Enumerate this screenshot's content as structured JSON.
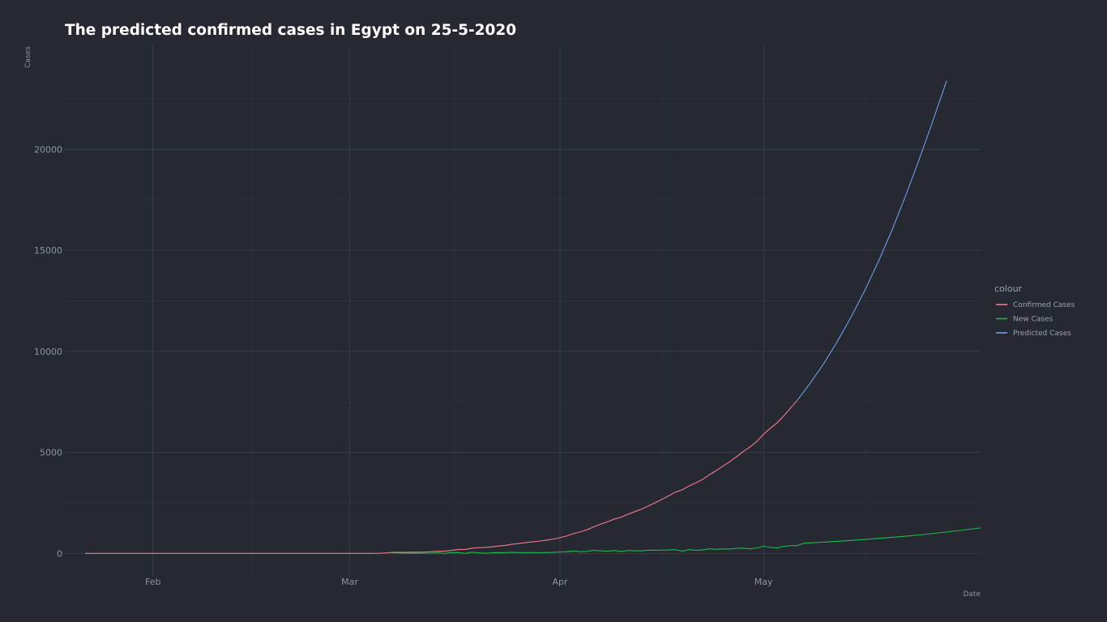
{
  "chart_data": {
    "type": "line",
    "title": "The predicted confirmed cases in Egypt on 25-5-2020",
    "xlabel": "Date",
    "ylabel": "Cases",
    "x_type": "date",
    "xlim": [
      "2020-01-19",
      "2020-06-02"
    ],
    "ylim": [
      -1150,
      25150
    ],
    "y_ticks": [
      0,
      5000,
      10000,
      15000,
      20000
    ],
    "x_ticks": [
      {
        "date": "2020-02-01",
        "label": "Feb"
      },
      {
        "date": "2020-03-01",
        "label": "Mar"
      },
      {
        "date": "2020-04-01",
        "label": "Apr"
      },
      {
        "date": "2020-05-01",
        "label": "May"
      }
    ],
    "grid": true,
    "legend_title": "colour",
    "legend_position": "right",
    "series": [
      {
        "name": "Confirmed Cases",
        "color": "#f27b8b",
        "points": [
          [
            "2020-01-22",
            0
          ],
          [
            "2020-02-14",
            1
          ],
          [
            "2020-03-01",
            2
          ],
          [
            "2020-03-04",
            2
          ],
          [
            "2020-03-05",
            3
          ],
          [
            "2020-03-06",
            15
          ],
          [
            "2020-03-07",
            48
          ],
          [
            "2020-03-08",
            55
          ],
          [
            "2020-03-09",
            55
          ],
          [
            "2020-03-10",
            59
          ],
          [
            "2020-03-11",
            60
          ],
          [
            "2020-03-12",
            67
          ],
          [
            "2020-03-13",
            80
          ],
          [
            "2020-03-14",
            109
          ],
          [
            "2020-03-15",
            110
          ],
          [
            "2020-03-16",
            150
          ],
          [
            "2020-03-17",
            196
          ],
          [
            "2020-03-18",
            196
          ],
          [
            "2020-03-19",
            256
          ],
          [
            "2020-03-20",
            285
          ],
          [
            "2020-03-21",
            294
          ],
          [
            "2020-03-22",
            327
          ],
          [
            "2020-03-23",
            366
          ],
          [
            "2020-03-24",
            402
          ],
          [
            "2020-03-25",
            456
          ],
          [
            "2020-03-26",
            495
          ],
          [
            "2020-03-27",
            536
          ],
          [
            "2020-03-28",
            576
          ],
          [
            "2020-03-29",
            609
          ],
          [
            "2020-03-30",
            656
          ],
          [
            "2020-03-31",
            710
          ],
          [
            "2020-04-01",
            779
          ],
          [
            "2020-04-02",
            865
          ],
          [
            "2020-04-03",
            985
          ],
          [
            "2020-04-04",
            1070
          ],
          [
            "2020-04-05",
            1173
          ],
          [
            "2020-04-06",
            1322
          ],
          [
            "2020-04-07",
            1450
          ],
          [
            "2020-04-08",
            1560
          ],
          [
            "2020-04-09",
            1699
          ],
          [
            "2020-04-10",
            1794
          ],
          [
            "2020-04-11",
            1939
          ],
          [
            "2020-04-12",
            2065
          ],
          [
            "2020-04-13",
            2190
          ],
          [
            "2020-04-14",
            2350
          ],
          [
            "2020-04-15",
            2505
          ],
          [
            "2020-04-16",
            2673
          ],
          [
            "2020-04-17",
            2844
          ],
          [
            "2020-04-18",
            3032
          ],
          [
            "2020-04-19",
            3144
          ],
          [
            "2020-04-20",
            3333
          ],
          [
            "2020-04-21",
            3490
          ],
          [
            "2020-04-22",
            3659
          ],
          [
            "2020-04-23",
            3891
          ],
          [
            "2020-04-24",
            4092
          ],
          [
            "2020-04-25",
            4319
          ],
          [
            "2020-04-26",
            4534
          ],
          [
            "2020-04-27",
            4782
          ],
          [
            "2020-04-28",
            5042
          ],
          [
            "2020-04-29",
            5268
          ],
          [
            "2020-04-30",
            5537
          ],
          [
            "2020-05-01",
            5895
          ],
          [
            "2020-05-02",
            6193
          ],
          [
            "2020-05-03",
            6465
          ],
          [
            "2020-05-04",
            6813
          ],
          [
            "2020-05-05",
            7201
          ],
          [
            "2020-05-06",
            7588
          ]
        ]
      },
      {
        "name": "New Cases",
        "color": "#1dbb4d",
        "points": [
          [
            "2020-03-07",
            33
          ],
          [
            "2020-03-10",
            4
          ],
          [
            "2020-03-13",
            13
          ],
          [
            "2020-03-14",
            29
          ],
          [
            "2020-03-15",
            1
          ],
          [
            "2020-03-16",
            40
          ],
          [
            "2020-03-17",
            46
          ],
          [
            "2020-03-18",
            0
          ],
          [
            "2020-03-19",
            60
          ],
          [
            "2020-03-20",
            29
          ],
          [
            "2020-03-21",
            9
          ],
          [
            "2020-03-22",
            33
          ],
          [
            "2020-03-23",
            39
          ],
          [
            "2020-03-24",
            36
          ],
          [
            "2020-03-25",
            54
          ],
          [
            "2020-03-26",
            39
          ],
          [
            "2020-03-27",
            41
          ],
          [
            "2020-03-28",
            40
          ],
          [
            "2020-03-29",
            33
          ],
          [
            "2020-03-30",
            47
          ],
          [
            "2020-03-31",
            54
          ],
          [
            "2020-04-01",
            69
          ],
          [
            "2020-04-02",
            86
          ],
          [
            "2020-04-03",
            120
          ],
          [
            "2020-04-04",
            85
          ],
          [
            "2020-04-05",
            103
          ],
          [
            "2020-04-06",
            149
          ],
          [
            "2020-04-07",
            128
          ],
          [
            "2020-04-08",
            110
          ],
          [
            "2020-04-09",
            139
          ],
          [
            "2020-04-10",
            95
          ],
          [
            "2020-04-11",
            145
          ],
          [
            "2020-04-12",
            126
          ],
          [
            "2020-04-13",
            125
          ],
          [
            "2020-04-14",
            160
          ],
          [
            "2020-04-15",
            155
          ],
          [
            "2020-04-16",
            168
          ],
          [
            "2020-04-17",
            171
          ],
          [
            "2020-04-18",
            188
          ],
          [
            "2020-04-19",
            112
          ],
          [
            "2020-04-20",
            189
          ],
          [
            "2020-04-21",
            157
          ],
          [
            "2020-04-22",
            169
          ],
          [
            "2020-04-23",
            232
          ],
          [
            "2020-04-24",
            201
          ],
          [
            "2020-04-25",
            227
          ],
          [
            "2020-04-26",
            215
          ],
          [
            "2020-04-27",
            248
          ],
          [
            "2020-04-28",
            260
          ],
          [
            "2020-04-29",
            226
          ],
          [
            "2020-04-30",
            269
          ],
          [
            "2020-05-01",
            358
          ],
          [
            "2020-05-02",
            298
          ],
          [
            "2020-05-03",
            272
          ],
          [
            "2020-05-04",
            348
          ],
          [
            "2020-05-05",
            388
          ],
          [
            "2020-05-06",
            387
          ],
          [
            "2020-05-07",
            508
          ],
          [
            "2020-05-10",
            560
          ],
          [
            "2020-05-13",
            620
          ],
          [
            "2020-05-16",
            690
          ],
          [
            "2020-05-19",
            770
          ],
          [
            "2020-05-22",
            850
          ],
          [
            "2020-05-25",
            950
          ],
          [
            "2020-05-28",
            1060
          ],
          [
            "2020-05-31",
            1180
          ],
          [
            "2020-06-02",
            1260
          ]
        ]
      },
      {
        "name": "Predicted Cases",
        "color": "#6e9ce8",
        "points": [
          [
            "2020-05-06",
            7588
          ],
          [
            "2020-05-08",
            8480
          ],
          [
            "2020-05-10",
            9460
          ],
          [
            "2020-05-12",
            10560
          ],
          [
            "2020-05-14",
            11760
          ],
          [
            "2020-05-16",
            13060
          ],
          [
            "2020-05-18",
            14500
          ],
          [
            "2020-05-20",
            16050
          ],
          [
            "2020-05-22",
            17750
          ],
          [
            "2020-05-24",
            19550
          ],
          [
            "2020-05-26",
            21450
          ],
          [
            "2020-05-28",
            23400
          ]
        ]
      }
    ]
  }
}
